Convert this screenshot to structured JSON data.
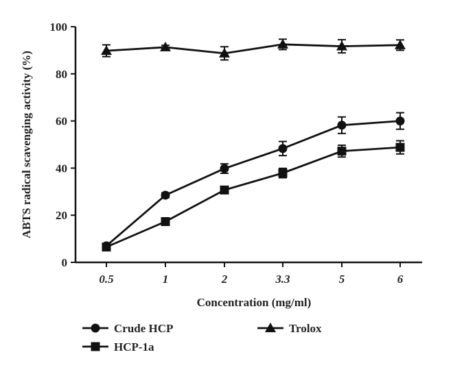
{
  "chart_data": {
    "type": "line",
    "xlabel": "Concentration (mg/ml)",
    "ylabel": "ABTS radical scavenging activity (%)",
    "categories": [
      "0.5",
      "1",
      "2",
      "3.3",
      "5",
      "6"
    ],
    "ylim": [
      0,
      100
    ],
    "yticks": [
      "0",
      "20",
      "40",
      "60",
      "80",
      "100"
    ],
    "grid": false,
    "legend_position": "bottom",
    "series": [
      {
        "name": "Crude HCP",
        "marker": "circle",
        "values": [
          7,
          28.5,
          39.8,
          48.3,
          58.2,
          60
        ],
        "errors": [
          0.8,
          1.0,
          2.0,
          3.0,
          3.5,
          3.5
        ]
      },
      {
        "name": "HCP-1a",
        "marker": "square",
        "values": [
          6.5,
          17.3,
          30.7,
          37.9,
          47.2,
          48.8
        ],
        "errors": [
          0.8,
          1.0,
          1.5,
          2.0,
          2.5,
          2.8
        ]
      },
      {
        "name": "Trolox",
        "marker": "triangle",
        "values": [
          89.8,
          91.3,
          88.7,
          92.5,
          91.7,
          92.2
        ],
        "errors": [
          2.5,
          0.8,
          2.8,
          2.2,
          2.8,
          2.2
        ]
      }
    ]
  }
}
